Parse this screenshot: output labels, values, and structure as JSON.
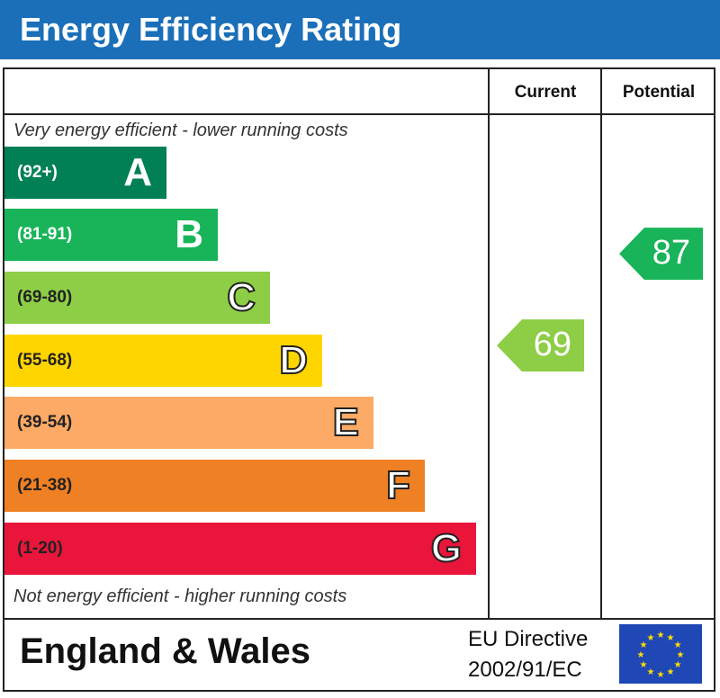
{
  "title": "Energy Efficiency Rating",
  "columns": {
    "current": "Current",
    "potential": "Potential"
  },
  "top_note": "Very energy efficient - lower running costs",
  "bottom_note": "Not energy efficient - higher running costs",
  "footer": {
    "region": "England & Wales",
    "directive_line1": "EU Directive",
    "directive_line2": "2002/91/EC"
  },
  "chart_data": {
    "type": "bar",
    "title": "Energy Efficiency Rating",
    "bands": [
      {
        "letter": "A",
        "range": "(92+)",
        "color": "#008054"
      },
      {
        "letter": "B",
        "range": "(81-91)",
        "color": "#19b459"
      },
      {
        "letter": "C",
        "range": "(69-80)",
        "color": "#8dce46"
      },
      {
        "letter": "D",
        "range": "(55-68)",
        "color": "#ffd500"
      },
      {
        "letter": "E",
        "range": "(39-54)",
        "color": "#fcaa65"
      },
      {
        "letter": "F",
        "range": "(21-38)",
        "color": "#ef8023"
      },
      {
        "letter": "G",
        "range": "(1-20)",
        "color": "#e9153b"
      }
    ],
    "current": {
      "value": "69",
      "band": "C",
      "color": "#8dce46"
    },
    "potential": {
      "value": "87",
      "band": "B",
      "color": "#19b459"
    }
  }
}
